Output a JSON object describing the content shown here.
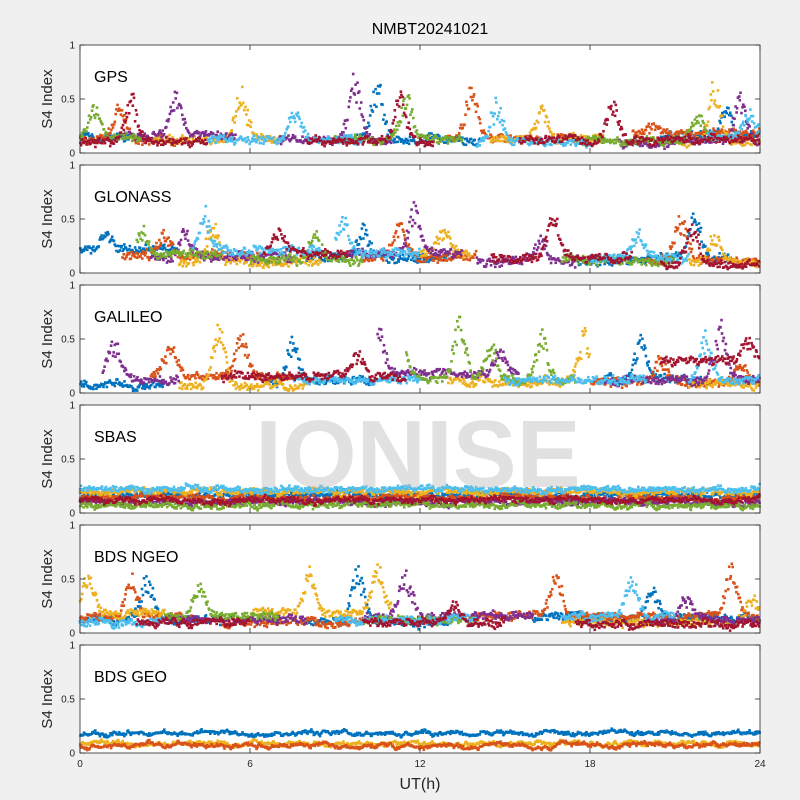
{
  "figure": {
    "title": "NMBT20241021",
    "xlabel": "UT(h)",
    "watermark": "IONISE",
    "background": "#f0f0f0",
    "axes_background": "#ffffff",
    "colors": [
      "#0072BD",
      "#D95319",
      "#EDB120",
      "#7E2F8E",
      "#77AC30",
      "#4DBEEE",
      "#A2142F"
    ]
  },
  "chart_data": [
    {
      "type": "scatter",
      "label": "GPS",
      "ylabel": "S4 Index",
      "xlim": [
        0,
        24
      ],
      "ylim": [
        0,
        1
      ],
      "xticks": [
        0,
        6,
        12,
        18,
        24
      ],
      "yticks": [
        0,
        0.5,
        1
      ],
      "noise": 0.03,
      "series": [
        {
          "color": 0,
          "segs": [
            [
              0,
              1.8,
              0.15
            ],
            [
              9.2,
              14.2,
              0.12
            ],
            [
              20.5,
              24,
              0.15
            ]
          ],
          "peaks": [
            [
              2.9,
              0.58
            ],
            [
              10.5,
              0.72
            ],
            [
              22.8,
              0.45
            ]
          ]
        },
        {
          "color": 1,
          "segs": [
            [
              0,
              3.5,
              0.12
            ],
            [
              13,
              17.5,
              0.14
            ],
            [
              19.5,
              24,
              0.18
            ]
          ],
          "peaks": [
            [
              1.4,
              0.45
            ],
            [
              13.8,
              0.62
            ],
            [
              20.2,
              0.3
            ]
          ]
        },
        {
          "color": 2,
          "segs": [
            [
              2.5,
              7.2,
              0.13
            ],
            [
              14.5,
              18.5,
              0.13
            ],
            [
              21,
              24,
              0.1
            ]
          ],
          "peaks": [
            [
              5.7,
              0.62
            ],
            [
              16.3,
              0.42
            ],
            [
              22.4,
              0.7
            ]
          ]
        },
        {
          "color": 3,
          "segs": [
            [
              1.5,
              5.5,
              0.17
            ],
            [
              7,
              11,
              0.12
            ],
            [
              19,
              24,
              0.1
            ]
          ],
          "peaks": [
            [
              3.4,
              0.58
            ],
            [
              9.7,
              0.74
            ],
            [
              23.3,
              0.55
            ]
          ]
        },
        {
          "color": 4,
          "segs": [
            [
              0,
              2.2,
              0.14
            ],
            [
              9,
              13.5,
              0.12
            ],
            [
              17.5,
              22.5,
              0.12
            ]
          ],
          "peaks": [
            [
              0.5,
              0.45
            ],
            [
              11.5,
              0.55
            ],
            [
              21.8,
              0.4
            ]
          ]
        },
        {
          "color": 5,
          "segs": [
            [
              4.5,
              10,
              0.12
            ],
            [
              14,
              18,
              0.1
            ],
            [
              22,
              24,
              0.15
            ]
          ],
          "peaks": [
            [
              7.6,
              0.48
            ],
            [
              14.7,
              0.5
            ],
            [
              23.6,
              0.42
            ]
          ]
        },
        {
          "color": 6,
          "segs": [
            [
              0,
              4.5,
              0.1
            ],
            [
              8,
              12.5,
              0.1
            ],
            [
              15.5,
              24,
              0.12
            ]
          ],
          "peaks": [
            [
              1.8,
              0.55
            ],
            [
              11.3,
              0.6
            ],
            [
              18.8,
              0.5
            ]
          ]
        }
      ]
    },
    {
      "type": "scatter",
      "label": "GLONASS",
      "ylabel": "S4 Index",
      "xlim": [
        0,
        24
      ],
      "ylim": [
        0,
        1
      ],
      "xticks": [
        0,
        6,
        12,
        18,
        24
      ],
      "yticks": [
        0,
        0.5,
        1
      ],
      "noise": 0.035,
      "series": [
        {
          "color": 0,
          "segs": [
            [
              0,
              3.5,
              0.22
            ],
            [
              8,
              13,
              0.14
            ],
            [
              17.5,
              23,
              0.12
            ]
          ],
          "peaks": [
            [
              0.9,
              0.38
            ],
            [
              10,
              0.45
            ],
            [
              21.7,
              0.62
            ]
          ]
        },
        {
          "color": 1,
          "segs": [
            [
              1.5,
              6.5,
              0.16
            ],
            [
              10,
              14,
              0.15
            ],
            [
              20,
              24,
              0.12
            ]
          ],
          "peaks": [
            [
              3,
              0.42
            ],
            [
              11.3,
              0.5
            ],
            [
              21.2,
              0.55
            ]
          ]
        },
        {
          "color": 2,
          "segs": [
            [
              3.5,
              8.5,
              0.1
            ],
            [
              12,
              13.8,
              0.18
            ],
            [
              21.5,
              24,
              0.1
            ]
          ],
          "peaks": [
            [
              4.7,
              0.52
            ],
            [
              12.8,
              0.4
            ],
            [
              22.4,
              0.38
            ]
          ]
        },
        {
          "color": 3,
          "segs": [
            [
              2.5,
              7.5,
              0.14
            ],
            [
              9.5,
              13.5,
              0.18
            ],
            [
              14,
              17.5,
              0.1
            ]
          ],
          "peaks": [
            [
              3.7,
              0.45
            ],
            [
              11.8,
              0.62
            ],
            [
              16.3,
              0.35
            ]
          ]
        },
        {
          "color": 4,
          "segs": [
            [
              2,
              5,
              0.18
            ],
            [
              6,
              10,
              0.12
            ],
            [
              17,
              21,
              0.12
            ]
          ],
          "peaks": [
            [
              2.2,
              0.42
            ],
            [
              8.3,
              0.38
            ]
          ]
        },
        {
          "color": 5,
          "segs": [
            [
              4,
              8.5,
              0.2
            ],
            [
              9,
              12,
              0.18
            ],
            [
              18,
              21.5,
              0.14
            ]
          ],
          "peaks": [
            [
              4.4,
              0.62
            ],
            [
              9.3,
              0.55
            ],
            [
              19.7,
              0.4
            ]
          ]
        },
        {
          "color": 6,
          "segs": [
            [
              6.5,
              9.5,
              0.18
            ],
            [
              14.5,
              19.5,
              0.14
            ],
            [
              20.5,
              24,
              0.08
            ]
          ],
          "peaks": [
            [
              7,
              0.42
            ],
            [
              16.7,
              0.55
            ],
            [
              21.6,
              0.5
            ]
          ]
        }
      ]
    },
    {
      "type": "scatter",
      "label": "GALILEO",
      "ylabel": "S4 Index",
      "xlim": [
        0,
        24
      ],
      "ylim": [
        0,
        1
      ],
      "xticks": [
        0,
        6,
        12,
        18,
        24
      ],
      "yticks": [
        0,
        0.5,
        1
      ],
      "noise": 0.03,
      "series": [
        {
          "color": 0,
          "segs": [
            [
              0,
              3,
              0.08
            ],
            [
              6.5,
              10.5,
              0.1
            ],
            [
              18.5,
              22,
              0.12
            ]
          ],
          "peaks": [
            [
              7.5,
              0.58
            ],
            [
              19.8,
              0.55
            ]
          ]
        },
        {
          "color": 1,
          "segs": [
            [
              2.5,
              7.5,
              0.15
            ],
            [
              18,
              24,
              0.1
            ]
          ],
          "peaks": [
            [
              3.2,
              0.45
            ],
            [
              5.7,
              0.55
            ],
            [
              20.5,
              0.35
            ],
            [
              23.3,
              0.3
            ]
          ]
        },
        {
          "color": 2,
          "segs": [
            [
              3.5,
              8,
              0.07
            ],
            [
              13,
              18,
              0.1
            ],
            [
              21.5,
              24,
              0.08
            ]
          ],
          "peaks": [
            [
              4.9,
              0.7
            ],
            [
              17.8,
              0.62
            ]
          ]
        },
        {
          "color": 3,
          "segs": [
            [
              0.8,
              3.5,
              0.12
            ],
            [
              10.5,
              15.5,
              0.18
            ],
            [
              18.5,
              24,
              0.12
            ]
          ],
          "peaks": [
            [
              1.2,
              0.55
            ],
            [
              10.5,
              0.68
            ],
            [
              14.8,
              0.42
            ],
            [
              22.6,
              0.68
            ]
          ]
        },
        {
          "color": 4,
          "segs": [
            [
              11.5,
              17.5,
              0.12
            ]
          ],
          "peaks": [
            [
              11.4,
              0.42
            ],
            [
              13.4,
              0.78
            ],
            [
              14.5,
              0.48
            ],
            [
              16.3,
              0.6
            ]
          ]
        },
        {
          "color": 5,
          "segs": [
            [
              7.5,
              12,
              0.12
            ],
            [
              15,
              20,
              0.12
            ],
            [
              21.5,
              24,
              0.12
            ]
          ],
          "peaks": [
            [
              12.4,
              0.55
            ],
            [
              22.1,
              0.6
            ]
          ]
        },
        {
          "color": 6,
          "segs": [
            [
              5,
              11.5,
              0.15
            ],
            [
              20.5,
              24,
              0.3
            ]
          ],
          "peaks": [
            [
              9.8,
              0.38
            ],
            [
              23.6,
              0.55
            ]
          ]
        }
      ]
    },
    {
      "type": "scatter",
      "label": "SBAS",
      "ylabel": "S4 Index",
      "xlim": [
        0,
        24
      ],
      "ylim": [
        0,
        1
      ],
      "xticks": [
        0,
        6,
        12,
        18,
        24
      ],
      "yticks": [
        0,
        0.5,
        1
      ],
      "noise": 0.02,
      "series": [
        {
          "color": 0,
          "segs": [
            [
              0,
              24,
              0.17
            ]
          ],
          "peaks": []
        },
        {
          "color": 1,
          "segs": [
            [
              0,
              24,
              0.14
            ]
          ],
          "peaks": []
        },
        {
          "color": 2,
          "segs": [
            [
              0,
              24,
              0.2
            ]
          ],
          "peaks": []
        },
        {
          "color": 3,
          "segs": [
            [
              0,
              24,
              0.1
            ]
          ],
          "peaks": []
        },
        {
          "color": 4,
          "segs": [
            [
              0,
              24,
              0.07
            ]
          ],
          "peaks": []
        },
        {
          "color": 5,
          "segs": [
            [
              0,
              24,
              0.22
            ]
          ],
          "peaks": []
        },
        {
          "color": 6,
          "segs": [
            [
              0,
              24,
              0.12
            ]
          ],
          "peaks": []
        }
      ]
    },
    {
      "type": "scatter",
      "label": "BDS NGEO",
      "ylabel": "S4 Index",
      "xlim": [
        0,
        24
      ],
      "ylim": [
        0,
        1
      ],
      "xticks": [
        0,
        6,
        12,
        18,
        24
      ],
      "yticks": [
        0,
        0.5,
        1
      ],
      "noise": 0.03,
      "series": [
        {
          "color": 0,
          "segs": [
            [
              0,
              5,
              0.12
            ],
            [
              8,
              13,
              0.1
            ],
            [
              16,
              24,
              0.14
            ]
          ],
          "peaks": [
            [
              2.4,
              0.55
            ],
            [
              9.8,
              0.65
            ],
            [
              20.2,
              0.45
            ]
          ]
        },
        {
          "color": 1,
          "segs": [
            [
              0,
              4,
              0.15
            ],
            [
              5,
              10,
              0.1
            ],
            [
              14,
              24,
              0.15
            ]
          ],
          "peaks": [
            [
              1.8,
              0.58
            ],
            [
              16.8,
              0.58
            ],
            [
              23,
              0.62
            ]
          ]
        },
        {
          "color": 2,
          "segs": [
            [
              0,
              3,
              0.18
            ],
            [
              6,
              11,
              0.18
            ],
            [
              17,
              24,
              0.1
            ]
          ],
          "peaks": [
            [
              0.3,
              0.6
            ],
            [
              8.1,
              0.6
            ],
            [
              10.5,
              0.65
            ],
            [
              23.7,
              0.35
            ]
          ]
        },
        {
          "color": 3,
          "segs": [
            [
              3,
              8,
              0.12
            ],
            [
              10,
              16,
              0.15
            ],
            [
              20,
              24,
              0.12
            ]
          ],
          "peaks": [
            [
              11.5,
              0.6
            ],
            [
              21.4,
              0.35
            ]
          ]
        },
        {
          "color": 4,
          "segs": [
            [
              3,
              7,
              0.15
            ],
            [
              10,
              14,
              0.12
            ]
          ],
          "peaks": [
            [
              4.2,
              0.5
            ]
          ]
        },
        {
          "color": 5,
          "segs": [
            [
              0,
              3,
              0.1
            ],
            [
              9,
              14,
              0.12
            ],
            [
              17,
              21,
              0.15
            ]
          ],
          "peaks": [
            [
              19.5,
              0.6
            ]
          ]
        },
        {
          "color": 6,
          "segs": [
            [
              2,
              6,
              0.1
            ],
            [
              10,
              15,
              0.1
            ],
            [
              17.5,
              24,
              0.08
            ]
          ],
          "peaks": [
            [
              13.2,
              0.3
            ]
          ]
        }
      ]
    },
    {
      "type": "scatter",
      "label": "BDS GEO",
      "ylabel": "S4 Index",
      "xlim": [
        0,
        24
      ],
      "ylim": [
        0,
        1
      ],
      "xticks": [
        0,
        6,
        12,
        18,
        24
      ],
      "yticks": [
        0,
        0.5,
        1
      ],
      "noise": 0.01,
      "series": [
        {
          "color": 0,
          "segs": [
            [
              0,
              24,
              0.18
            ]
          ],
          "peaks": []
        },
        {
          "color": 2,
          "segs": [
            [
              0,
              24,
              0.09
            ]
          ],
          "peaks": []
        },
        {
          "color": 1,
          "segs": [
            [
              0,
              24,
              0.07
            ]
          ],
          "peaks": []
        }
      ]
    }
  ]
}
